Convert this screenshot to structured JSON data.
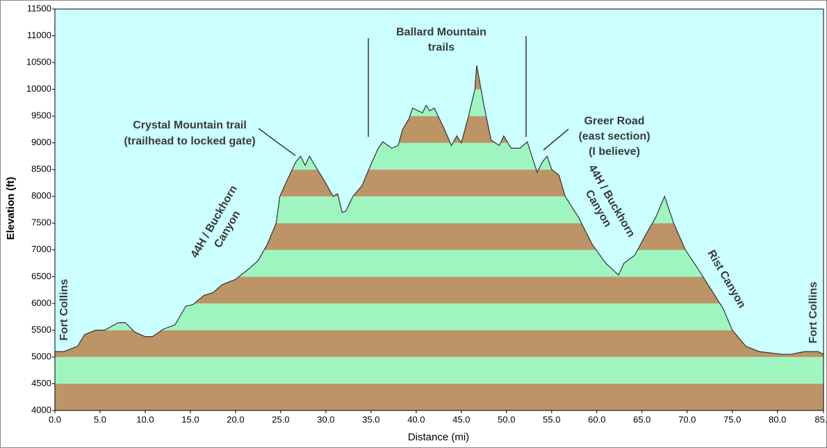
{
  "chart_data": {
    "type": "area",
    "x_label": "Distance   (mi)",
    "y_label": "Elevation (ft)",
    "x": [
      0,
      1,
      2.5,
      3.3,
      4.5,
      5.5,
      7,
      7.8,
      8.8,
      10,
      10.8,
      12,
      13.3,
      14.5,
      15.3,
      16.5,
      17.5,
      18.5,
      20,
      21.5,
      22.5,
      23.5,
      24.5,
      24.9,
      25.7,
      26.7,
      27.2,
      27.7,
      28.2,
      28.7,
      29.8,
      30.8,
      31.3,
      31.8,
      32.2,
      33,
      34,
      35,
      35.8,
      36.3,
      37.3,
      38,
      38.5,
      39.2,
      39.6,
      40.2,
      40.7,
      41.1,
      41.5,
      42,
      43,
      43.9,
      44.5,
      45,
      45.8,
      46.5,
      46.7,
      47.5,
      48.3,
      49.2,
      49.7,
      50.5,
      51.5,
      52.3,
      53,
      53.4,
      54,
      54.5,
      55,
      55.8,
      56.5,
      58,
      59.5,
      61,
      62.4,
      63,
      64.2,
      65.3,
      66.5,
      67.5,
      68.5,
      69.8,
      71,
      72.5,
      74,
      75,
      76.5,
      78,
      80.5,
      81.5,
      83,
      84.5,
      85.1
    ],
    "values": [
      5100,
      5100,
      5200,
      5420,
      5500,
      5500,
      5640,
      5640,
      5470,
      5380,
      5380,
      5520,
      5600,
      5950,
      5980,
      6150,
      6200,
      6350,
      6450,
      6650,
      6800,
      7100,
      7500,
      8000,
      8300,
      8650,
      8750,
      8580,
      8750,
      8600,
      8300,
      8000,
      8050,
      7700,
      7720,
      8000,
      8200,
      8600,
      8900,
      9020,
      8900,
      8950,
      9250,
      9450,
      9650,
      9600,
      9560,
      9700,
      9600,
      9650,
      9300,
      8950,
      9130,
      9000,
      9500,
      10000,
      10450,
      9700,
      9050,
      8950,
      9130,
      8900,
      8900,
      9020,
      8650,
      8450,
      8650,
      8750,
      8500,
      8400,
      8000,
      7600,
      7100,
      6750,
      6530,
      6750,
      6900,
      7250,
      7600,
      8000,
      7500,
      7000,
      6700,
      6300,
      5900,
      5500,
      5200,
      5100,
      5050,
      5050,
      5100,
      5100,
      5050
    ],
    "xlim": [
      0,
      85.1
    ],
    "ylim": [
      4000,
      11500
    ],
    "xticks": [
      {
        "value": 0,
        "label": "0.0"
      },
      {
        "value": 5,
        "label": "5.0"
      },
      {
        "value": 10,
        "label": "10.0"
      },
      {
        "value": 15,
        "label": "15.0"
      },
      {
        "value": 20,
        "label": "20.0"
      },
      {
        "value": 25,
        "label": "25.0"
      },
      {
        "value": 30,
        "label": "30.0"
      },
      {
        "value": 35,
        "label": "35.0"
      },
      {
        "value": 40,
        "label": "40.0"
      },
      {
        "value": 45,
        "label": "45.0"
      },
      {
        "value": 50,
        "label": "50.0"
      },
      {
        "value": 55,
        "label": "55.0"
      },
      {
        "value": 60,
        "label": "60.0"
      },
      {
        "value": 65,
        "label": "65.0"
      },
      {
        "value": 70,
        "label": "70.0"
      },
      {
        "value": 75,
        "label": "75.0"
      },
      {
        "value": 80,
        "label": "80.0"
      },
      {
        "value": 85.1,
        "label": "85.1"
      }
    ],
    "yticks": [
      4000,
      4500,
      5000,
      5500,
      6000,
      6500,
      7000,
      7500,
      8000,
      8500,
      9000,
      9500,
      10000,
      10500,
      11000,
      11500
    ],
    "band_colors": [
      "#bd9466",
      "#9ef5c0"
    ],
    "background": "#ccffff",
    "annotations": [
      {
        "lines": [
          "Fort Collins"
        ]
      },
      {
        "lines": [
          "44H / Buckhorn",
          "Canyon"
        ]
      },
      {
        "lines": [
          "Crystal Mountain trail",
          "(trailhead to locked gate)"
        ]
      },
      {
        "lines": [
          "Ballard Mountain",
          "trails"
        ]
      },
      {
        "lines": [
          "Greer Road",
          "(east section)",
          "(I believe)"
        ]
      },
      {
        "lines": [
          "44H / Buckhorn",
          "Canyon"
        ]
      },
      {
        "lines": [
          "Rist Canyon"
        ]
      },
      {
        "lines": [
          "Fort Collins"
        ]
      }
    ]
  }
}
